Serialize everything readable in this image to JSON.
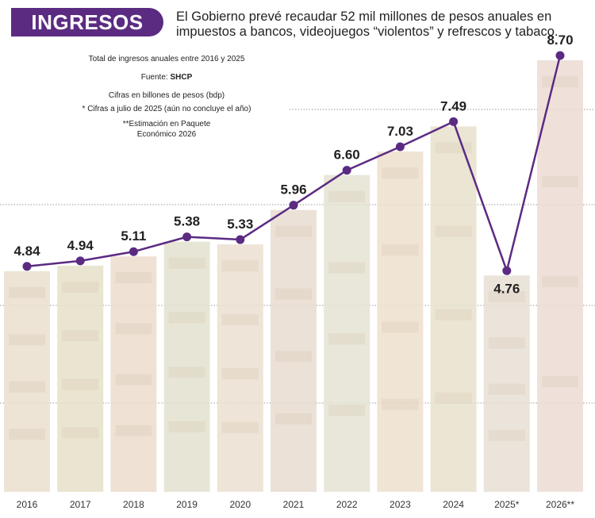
{
  "header": {
    "badge": "INGRESOS",
    "headline": "El Gobierno prevé recaudar 52 mil millones de pesos anuales en impuestos a bancos, videojuegos “violentos” y refrescos y tabaco."
  },
  "notes": {
    "title": "Total de ingresos anuales entre 2016 y 2025",
    "source_prefix": "Fuente:",
    "source_name": "SHCP",
    "units": "Cifras en billones de pesos (bdp)",
    "note1": "* Cifras a julio de 2025 (aún no concluye el año)",
    "note2": "**Estimación en Paquete Económico 2026"
  },
  "colors": {
    "accent": "#5b2b82",
    "line": "#5b2b82",
    "bar_base": "#efe2d3"
  },
  "chart_data": {
    "type": "line",
    "title": "Total de ingresos anuales entre 2016 y 2025",
    "ylabel": "billones de pesos (bdp)",
    "categories": [
      "2016",
      "2017",
      "2018",
      "2019",
      "2020",
      "2021",
      "2022",
      "2023",
      "2024",
      "2025*",
      "2026**"
    ],
    "values": [
      4.84,
      4.94,
      5.11,
      5.38,
      5.33,
      5.96,
      6.6,
      7.03,
      7.49,
      4.76,
      8.7
    ],
    "value_labels": [
      "4.84",
      "4.94",
      "5.11",
      "5.38",
      "5.33",
      "5.96",
      "6.60",
      "7.03",
      "7.49",
      "4.76",
      "8.70"
    ],
    "ylim": [
      0,
      10
    ]
  }
}
